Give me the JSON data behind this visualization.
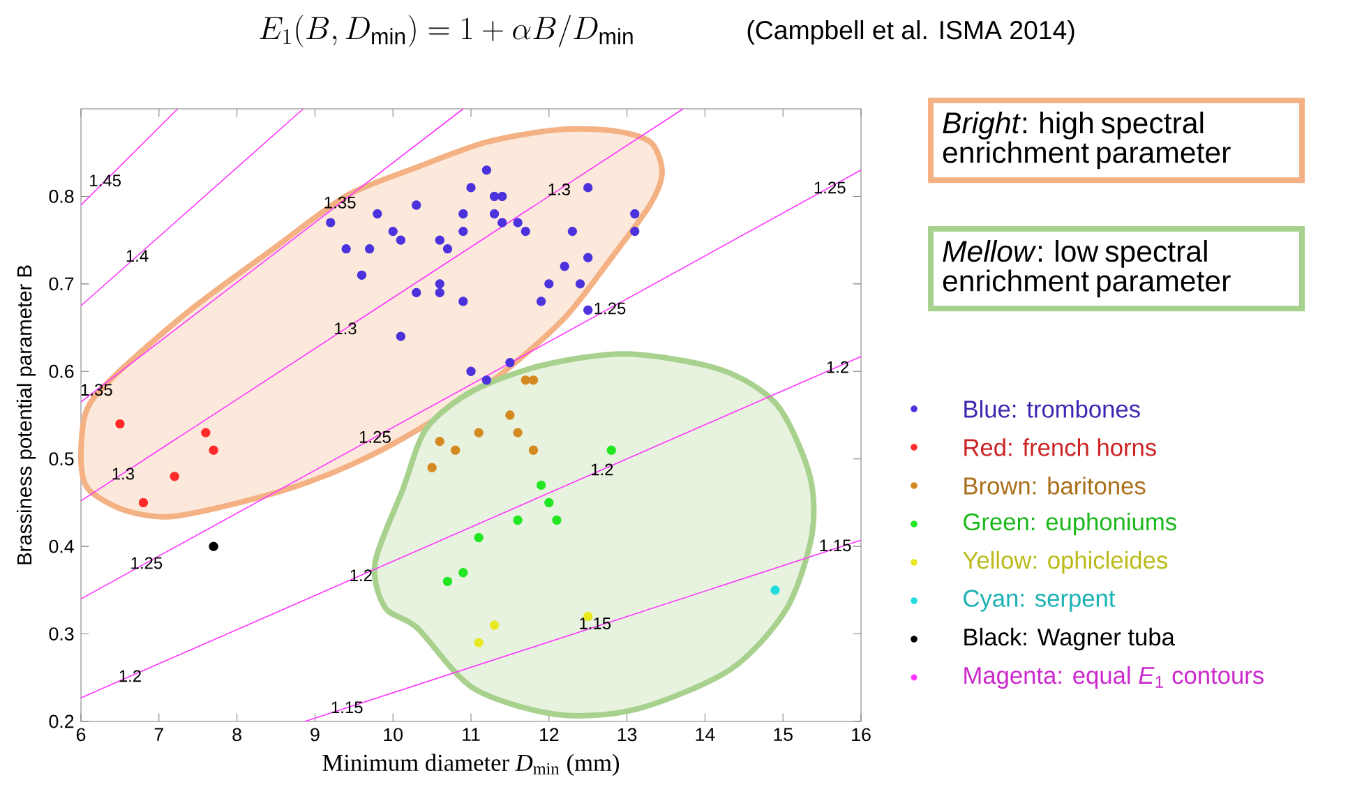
{
  "chart_data": {
    "type": "scatter",
    "title": "E_1(B, D_{\\min}) = 1 + \\alpha B/D_{\\min}",
    "xlabel": "Minimum diameter *D*$_{min}$ (mm)",
    "ylabel": "Brassiness potential parameter B",
    "xlim": [
      6,
      16
    ],
    "ylim": [
      0.2,
      0.9
    ],
    "xticks": [
      6,
      7,
      8,
      9,
      10,
      11,
      12,
      13,
      14,
      15,
      16
    ],
    "yticks": [
      0.2,
      0.3,
      0.4,
      0.5,
      0.6,
      0.7,
      0.8
    ],
    "line_style": "solid",
    "legend": "right",
    "annotations": [
      "(Campbell et al. ISMA 2014)",
      "*Bright*: high spectral enrichment parameter",
      "*Mellow*: low spectral enrichment parameter",
      {
        "text": "1.45",
        "x": 6.31,
        "y": 0.818
      },
      {
        "text": "1.4",
        "x": 6.72,
        "y": 0.732
      },
      {
        "text": "1.35",
        "x": 6.2,
        "y": 0.579
      },
      {
        "text": "1.35",
        "x": 9.32,
        "y": 0.793
      },
      {
        "text": "1.3",
        "x": 6.54,
        "y": 0.483
      },
      {
        "text": "1.3",
        "x": 9.39,
        "y": 0.649
      },
      {
        "text": "1.3",
        "x": 12.13,
        "y": 0.808
      },
      {
        "text": "1.25",
        "x": 6.84,
        "y": 0.381
      },
      {
        "text": "1.25",
        "x": 9.77,
        "y": 0.525
      },
      {
        "text": "1.25",
        "x": 12.78,
        "y": 0.672
      },
      {
        "text": "1.25",
        "x": 15.6,
        "y": 0.81
      },
      {
        "text": "1.2",
        "x": 6.63,
        "y": 0.252
      },
      {
        "text": "1.2",
        "x": 9.59,
        "y": 0.367
      },
      {
        "text": "1.2",
        "x": 12.68,
        "y": 0.488
      },
      {
        "text": "1.2",
        "x": 15.7,
        "y": 0.605
      },
      {
        "text": "1.15",
        "x": 9.41,
        "y": 0.216
      },
      {
        "text": "1.15",
        "x": 12.59,
        "y": 0.312
      },
      {
        "text": "1.15",
        "x": 15.67,
        "y": 0.401
      }
    ],
    "series": [
      {
        "name": "Blue: trombones",
        "marker": "circle",
        "color": "#4b32dc",
        "x": [
          9.2,
          9.4,
          9.7,
          9.6,
          9.8,
          10.0,
          10.1,
          10.3,
          10.1,
          10.3,
          10.6,
          10.7,
          10.6,
          10.6,
          10.9,
          10.9,
          10.9,
          11.0,
          11.2,
          11.3,
          11.4,
          11.3,
          11.4,
          11.6,
          11.7,
          11.0,
          11.2,
          11.5,
          11.9,
          12.0,
          12.2,
          12.3,
          12.4,
          12.5,
          12.5,
          13.1,
          13.1,
          12.5
        ],
        "values": [
          0.77,
          0.74,
          0.74,
          0.71,
          0.78,
          0.76,
          0.75,
          0.79,
          0.64,
          0.69,
          0.75,
          0.74,
          0.7,
          0.69,
          0.78,
          0.76,
          0.68,
          0.81,
          0.83,
          0.8,
          0.8,
          0.78,
          0.77,
          0.77,
          0.76,
          0.6,
          0.59,
          0.61,
          0.68,
          0.7,
          0.72,
          0.76,
          0.7,
          0.73,
          0.81,
          0.78,
          0.76,
          0.67
        ]
      },
      {
        "name": "Red: french horns",
        "marker": "circle",
        "color": "#ff2a2a",
        "x": [
          6.5,
          7.6,
          7.7,
          7.2,
          6.8
        ],
        "values": [
          0.54,
          0.53,
          0.51,
          0.48,
          0.45
        ]
      },
      {
        "name": "Brown: baritones",
        "marker": "circle",
        "color": "#d48a20",
        "x": [
          11.7,
          11.8,
          11.5,
          11.1,
          11.6,
          10.6,
          10.8,
          11.8,
          10.5
        ],
        "values": [
          0.59,
          0.59,
          0.55,
          0.53,
          0.53,
          0.52,
          0.51,
          0.51,
          0.49
        ]
      },
      {
        "name": "Green: euphoniums",
        "marker": "circle",
        "color": "#22e622",
        "x": [
          12.8,
          11.9,
          12.0,
          11.6,
          12.1,
          11.1,
          10.9,
          10.7
        ],
        "values": [
          0.51,
          0.47,
          0.45,
          0.43,
          0.43,
          0.41,
          0.37,
          0.36
        ]
      },
      {
        "name": "Yellow: ophicleides",
        "marker": "circle",
        "color": "#e8e820",
        "x": [
          12.5,
          11.3,
          11.1
        ],
        "values": [
          0.32,
          0.31,
          0.29
        ]
      },
      {
        "name": "Cyan: serpent",
        "marker": "circle",
        "color": "#22dde0",
        "x": [
          14.9
        ],
        "values": [
          0.35
        ]
      },
      {
        "name": "Black: Wagner tuba",
        "marker": "circle",
        "color": "#000000",
        "x": [
          7.7
        ],
        "values": [
          0.4
        ]
      },
      {
        "name": "Magenta: equal *E*$_{1}$ contours",
        "type": "line",
        "color": "#ff33ff",
        "x": [
          6,
          7.24
        ],
        "values": [
          0.79,
          0.9
        ]
      },
      {
        "type": "line",
        "color": "#ff33ff",
        "x": [
          6,
          8.85
        ],
        "values": [
          0.675,
          0.9
        ]
      },
      {
        "type": "line",
        "color": "#ff33ff",
        "x": [
          6,
          10.9
        ],
        "values": [
          0.565,
          0.9
        ]
      },
      {
        "type": "line",
        "color": "#ff33ff",
        "x": [
          6,
          13.72
        ],
        "values": [
          0.452,
          0.9
        ]
      },
      {
        "type": "line",
        "color": "#ff33ff",
        "x": [
          6,
          16
        ],
        "values": [
          0.34,
          0.83
        ]
      },
      {
        "type": "line",
        "color": "#ff33ff",
        "x": [
          6,
          16
        ],
        "values": [
          0.227,
          0.617
        ]
      },
      {
        "type": "line",
        "color": "#ff33ff",
        "x": [
          8.87,
          16
        ],
        "values": [
          0.2,
          0.407
        ]
      },
      {
        "type": "area",
        "color": "#f4b183",
        "x": [
          6.0,
          6.09,
          6.54,
          7.14,
          8.03,
          8.93,
          9.83,
          10.85,
          11.5,
          12.22,
          12.82,
          13.3,
          13.45,
          13.3,
          12.82,
          12.1,
          11.2,
          10.3,
          9.41,
          8.51,
          7.4,
          6.42,
          6.07
        ],
        "values": [
          0.5,
          0.466,
          0.442,
          0.434,
          0.45,
          0.474,
          0.509,
          0.562,
          0.605,
          0.663,
          0.732,
          0.791,
          0.828,
          0.862,
          0.875,
          0.876,
          0.862,
          0.833,
          0.801,
          0.743,
          0.67,
          0.594,
          0.555
        ]
      },
      {
        "type": "area",
        "color": "#a9d18e",
        "x": [
          13.0,
          11.92,
          11.03,
          10.43,
          10.13,
          9.77,
          9.9,
          10.31,
          11.03,
          12.1,
          13.12,
          14.32,
          15.04,
          15.37,
          15.34,
          14.92,
          14.2
        ],
        "values": [
          0.62,
          0.607,
          0.578,
          0.535,
          0.466,
          0.381,
          0.33,
          0.307,
          0.238,
          0.208,
          0.214,
          0.259,
          0.328,
          0.413,
          0.482,
          0.562,
          0.602
        ]
      }
    ]
  }
}
